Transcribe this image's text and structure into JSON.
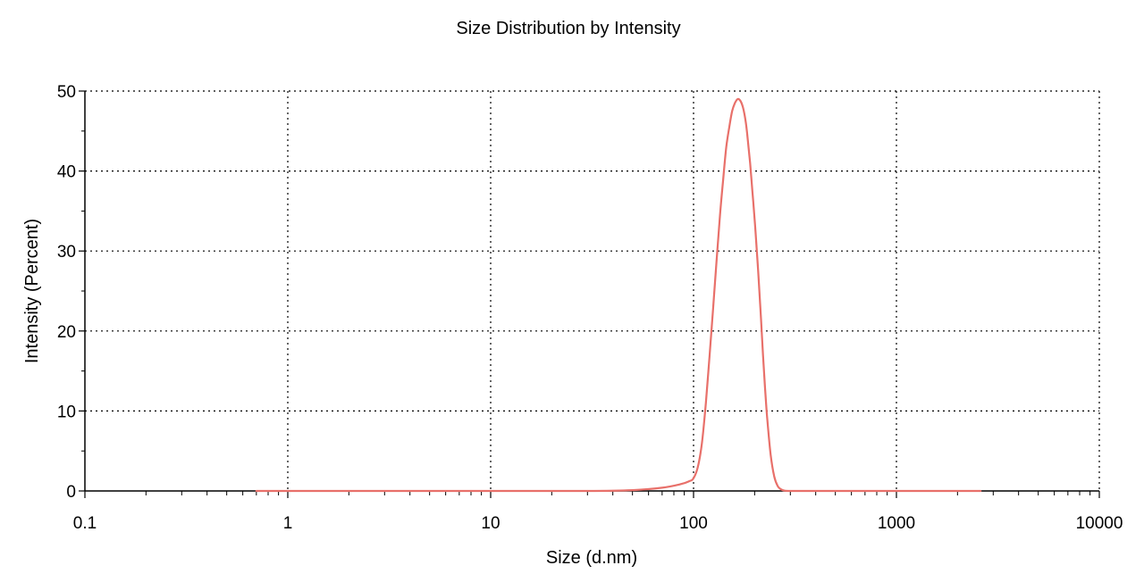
{
  "chart_data": {
    "type": "line",
    "title": "Size Distribution by Intensity",
    "xlabel": "Size (d.nm)",
    "ylabel": "Intensity (Percent)",
    "x_scale": "log",
    "xlim": [
      0.1,
      10000
    ],
    "ylim": [
      0,
      50
    ],
    "grid": true,
    "x_ticks": [
      {
        "value": 0.1,
        "label": "0.1"
      },
      {
        "value": 1,
        "label": "1"
      },
      {
        "value": 10,
        "label": "10"
      },
      {
        "value": 100,
        "label": "100"
      },
      {
        "value": 1000,
        "label": "1000"
      },
      {
        "value": 10000,
        "label": "10000"
      }
    ],
    "y_ticks": [
      {
        "value": 0,
        "label": "0"
      },
      {
        "value": 10,
        "label": "10"
      },
      {
        "value": 20,
        "label": "20"
      },
      {
        "value": 30,
        "label": "30"
      },
      {
        "value": 40,
        "label": "40"
      },
      {
        "value": 50,
        "label": "50"
      }
    ],
    "series": [
      {
        "color": "#e8706a",
        "x": [
          0.7,
          1,
          5,
          10,
          30,
          50,
          70,
          85,
          95,
          100,
          105,
          110,
          115,
          120,
          125,
          130,
          135,
          140,
          145,
          150,
          155,
          160,
          165,
          170,
          175,
          180,
          185,
          190,
          195,
          200,
          205,
          210,
          215,
          220,
          225,
          230,
          240,
          250,
          260,
          270,
          280,
          300,
          400,
          1000,
          2600
        ],
        "y": [
          0,
          0,
          0,
          0,
          0,
          0.1,
          0.4,
          0.8,
          1.2,
          1.6,
          3,
          6,
          11,
          17,
          23,
          29,
          34.5,
          39,
          43,
          45.5,
          47.5,
          48.5,
          49,
          48.8,
          48,
          46.5,
          44,
          41,
          37.5,
          34,
          30,
          26,
          21.5,
          17,
          13,
          9.5,
          4.5,
          1.8,
          0.6,
          0.2,
          0.05,
          0,
          0,
          0,
          0
        ]
      }
    ]
  }
}
